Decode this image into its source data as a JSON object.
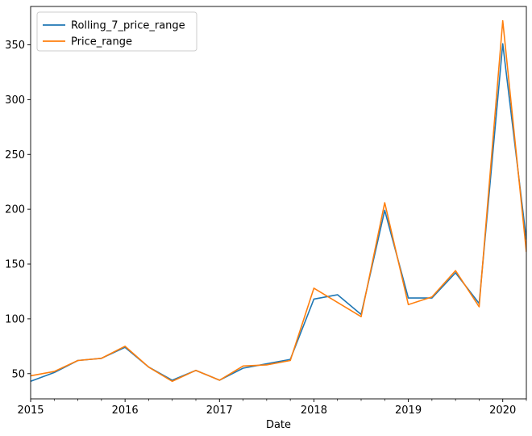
{
  "chart_data": {
    "type": "line",
    "title": "",
    "xlabel": "Date",
    "ylabel": "",
    "x": [
      "2015-01",
      "2015-04",
      "2015-07",
      "2015-10",
      "2016-01",
      "2016-04",
      "2016-07",
      "2016-10",
      "2017-01",
      "2017-04",
      "2017-07",
      "2017-10",
      "2018-01",
      "2018-04",
      "2018-07",
      "2018-10",
      "2019-01",
      "2019-04",
      "2019-07",
      "2019-10",
      "2020-01",
      "2020-04"
    ],
    "series": [
      {
        "name": "Rolling_7_price_range",
        "color": "#1f77b4",
        "values": [
          43,
          51,
          62,
          64,
          74,
          56,
          44,
          53,
          44,
          55,
          59,
          63,
          118,
          122,
          104,
          199,
          119,
          119,
          142,
          114,
          351,
          172
        ]
      },
      {
        "name": "Price_range",
        "color": "#ff7f0e",
        "values": [
          48,
          52,
          62,
          64,
          75,
          56,
          43,
          53,
          44,
          57,
          58,
          62,
          128,
          115,
          102,
          206,
          113,
          120,
          144,
          111,
          372,
          161
        ]
      }
    ],
    "xticks": [
      "2015",
      "2016",
      "2017",
      "2018",
      "2019",
      "2020"
    ],
    "xtick_dates": [
      "2015-01",
      "2016-01",
      "2017-01",
      "2018-01",
      "2019-01",
      "2020-01"
    ],
    "xlim": [
      "2015-01",
      "2020-04"
    ],
    "yticks": [
      50,
      100,
      150,
      200,
      250,
      300,
      350
    ],
    "ylim": [
      27,
      385
    ],
    "grid": false,
    "legend_position": "upper-left"
  }
}
